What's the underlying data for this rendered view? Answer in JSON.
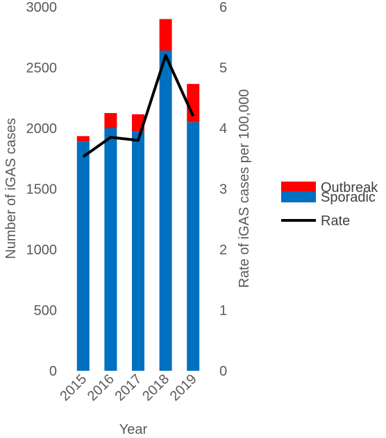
{
  "chart_data": {
    "type": "bar",
    "stacked": true,
    "categories": [
      "2015",
      "2016",
      "2017",
      "2018",
      "2019"
    ],
    "series": [
      {
        "name": "Sporadic",
        "type": "bar",
        "axis": "left",
        "color": "#0070C0",
        "values": [
          1890,
          2000,
          1975,
          2640,
          2050
        ]
      },
      {
        "name": "Outbreak",
        "type": "bar",
        "axis": "left",
        "color": "#FF0000",
        "values": [
          45,
          125,
          140,
          260,
          315
        ]
      },
      {
        "name": "Rate",
        "type": "line",
        "axis": "right",
        "color": "#000000",
        "values": [
          3.53,
          3.85,
          3.8,
          5.2,
          4.2
        ]
      }
    ],
    "xlabel": "Year",
    "ylabel": "Number of iGAS cases",
    "y2label": "Rate of iGAS cases per 100,000",
    "ylim": [
      0,
      3000
    ],
    "y2lim": [
      0,
      6
    ],
    "yticks": [
      "0",
      "500",
      "1000",
      "1500",
      "2000",
      "2500",
      "3000"
    ],
    "y2ticks": [
      "0",
      "1",
      "2",
      "3",
      "4",
      "5",
      "6"
    ],
    "legend": [
      "Outbreak",
      "Sporadic",
      "Rate"
    ],
    "legend_position": "right",
    "grid": false
  }
}
